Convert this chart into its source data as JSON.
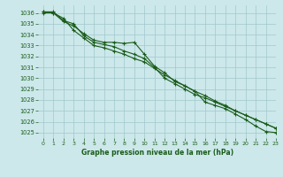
{
  "background_color": "#cce8ea",
  "grid_color": "#a0c8cc",
  "line_color": "#1a5c1a",
  "xlabel": "Graphe pression niveau de la mer (hPa)",
  "ylim": [
    1024.5,
    1036.7
  ],
  "xlim": [
    -0.5,
    23
  ],
  "yticks": [
    1025,
    1026,
    1027,
    1028,
    1029,
    1030,
    1031,
    1032,
    1033,
    1034,
    1035,
    1036
  ],
  "xticks": [
    0,
    1,
    2,
    3,
    4,
    5,
    6,
    7,
    8,
    9,
    10,
    11,
    12,
    13,
    14,
    15,
    16,
    17,
    18,
    19,
    20,
    21,
    22,
    23
  ],
  "series": [
    [
      1036.0,
      1036.0,
      1035.2,
      1034.8,
      1034.1,
      1033.5,
      1033.3,
      1033.3,
      1033.2,
      1033.3,
      1032.2,
      1031.1,
      1030.5,
      1029.7,
      1029.3,
      1028.8,
      1027.8,
      1027.5,
      1027.2,
      1026.7,
      1026.2,
      1025.6,
      1025.1,
      1025.0
    ],
    [
      1036.1,
      1036.1,
      1035.3,
      1035.0,
      1033.9,
      1033.3,
      1033.1,
      1032.9,
      1032.5,
      1032.2,
      1031.8,
      1031.0,
      1030.0,
      1029.5,
      1029.0,
      1028.5,
      1028.2,
      1027.8,
      1027.4,
      1027.0,
      1026.6,
      1026.2,
      1025.8,
      1025.4
    ],
    [
      1036.1,
      1036.0,
      1035.5,
      1034.4,
      1033.7,
      1033.0,
      1032.8,
      1032.5,
      1032.2,
      1031.8,
      1031.5,
      1030.9,
      1030.3,
      1029.8,
      1029.3,
      1028.8,
      1028.4,
      1027.9,
      1027.5,
      1027.0,
      1026.6,
      1026.2,
      1025.8,
      1025.4
    ]
  ]
}
